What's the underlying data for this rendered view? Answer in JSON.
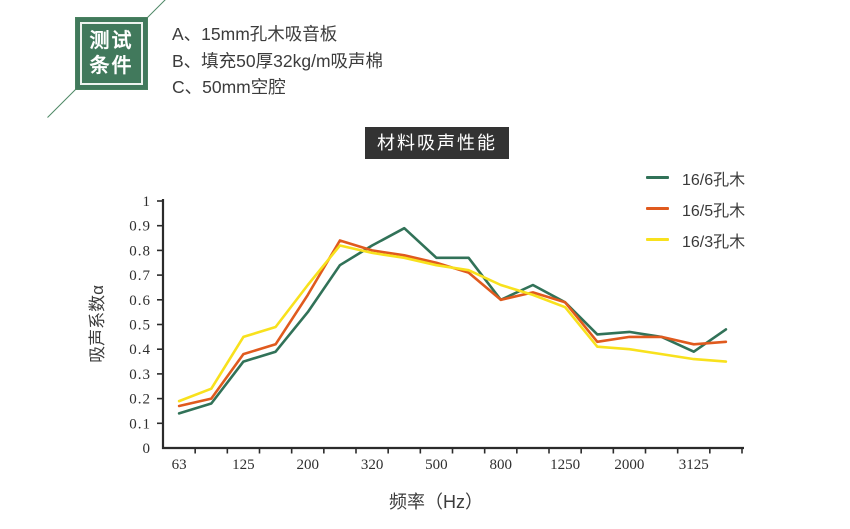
{
  "badge": {
    "line1": "测试",
    "line2": "条件"
  },
  "conditions": {
    "items": [
      "A、15mm孔木吸音板",
      "B、填充50厚32kg/m吸声棉",
      "C、50mm空腔"
    ]
  },
  "title_bar": {
    "text": "材料吸声性能"
  },
  "colors": {
    "badge_green": "#41795c",
    "title_bar_bg": "#333333",
    "axis": "#2b2b2b",
    "text": "#3c3c3c",
    "series_green": "#317258",
    "series_orange": "#e05a1e",
    "series_yellow": "#f8e11d"
  },
  "chart_data": {
    "type": "line",
    "title": "材料吸声性能",
    "xlabel": "频率（Hz）",
    "ylabel": "吸声系数α",
    "ylim": [
      0,
      1
    ],
    "y_tick_step": 0.1,
    "grid": false,
    "legend_position": "top-right",
    "n_points": 18,
    "x_tick_labels": [
      "63",
      "125",
      "200",
      "320",
      "500",
      "800",
      "1250",
      "2000",
      "3125"
    ],
    "x_tick_label_note": "labels sit under every other point (points 1,3,5,...,17 of 18); minor ticks at every point boundary",
    "series": [
      {
        "name": "16/6孔木",
        "color": "#317258",
        "values": [
          0.14,
          0.18,
          0.35,
          0.39,
          0.55,
          0.74,
          0.82,
          0.89,
          0.77,
          0.77,
          0.6,
          0.66,
          0.59,
          0.46,
          0.47,
          0.45,
          0.39,
          0.48
        ]
      },
      {
        "name": "16/5孔木",
        "color": "#e05a1e",
        "values": [
          0.17,
          0.2,
          0.38,
          0.42,
          0.62,
          0.84,
          0.8,
          0.78,
          0.75,
          0.71,
          0.6,
          0.63,
          0.59,
          0.43,
          0.45,
          0.45,
          0.42,
          0.43
        ]
      },
      {
        "name": "16/3孔木",
        "color": "#f8e11d",
        "values": [
          0.19,
          0.24,
          0.45,
          0.49,
          0.66,
          0.82,
          0.79,
          0.77,
          0.74,
          0.72,
          0.66,
          0.62,
          0.57,
          0.41,
          0.4,
          0.38,
          0.36,
          0.35
        ]
      }
    ]
  }
}
